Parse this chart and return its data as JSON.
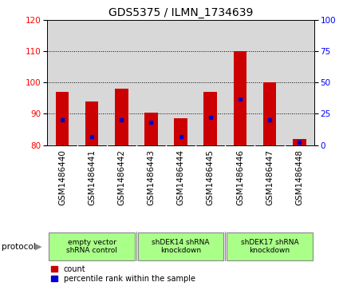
{
  "title": "GDS5375 / ILMN_1734639",
  "samples": [
    "GSM1486440",
    "GSM1486441",
    "GSM1486442",
    "GSM1486443",
    "GSM1486444",
    "GSM1486445",
    "GSM1486446",
    "GSM1486447",
    "GSM1486448"
  ],
  "count_values": [
    97,
    94,
    98,
    90.5,
    88.5,
    97,
    110,
    100,
    82
  ],
  "percentile_values": [
    20,
    7,
    20,
    18,
    7,
    22,
    37,
    20,
    2
  ],
  "ylim_left": [
    80,
    120
  ],
  "ylim_right": [
    0,
    100
  ],
  "yticks_left": [
    80,
    90,
    100,
    110,
    120
  ],
  "yticks_right": [
    0,
    25,
    50,
    75,
    100
  ],
  "bar_color": "#cc0000",
  "dot_color": "#0000cc",
  "bar_width": 0.45,
  "groups": [
    {
      "label": "empty vector\nshRNA control",
      "indices": [
        0,
        1,
        2
      ],
      "color": "#aaff88"
    },
    {
      "label": "shDEK14 shRNA\nknockdown",
      "indices": [
        3,
        4,
        5
      ],
      "color": "#aaff88"
    },
    {
      "label": "shDEK17 shRNA\nknockdown",
      "indices": [
        6,
        7,
        8
      ],
      "color": "#aaff88"
    }
  ],
  "legend_count_label": "count",
  "legend_pct_label": "percentile rank within the sample",
  "protocol_label": "protocol",
  "background_color": "#ffffff",
  "plot_bg_color": "#d8d8d8",
  "xtick_bg_color": "#d0d0d0",
  "title_fontsize": 10,
  "tick_fontsize": 7.5,
  "label_fontsize": 7.5
}
